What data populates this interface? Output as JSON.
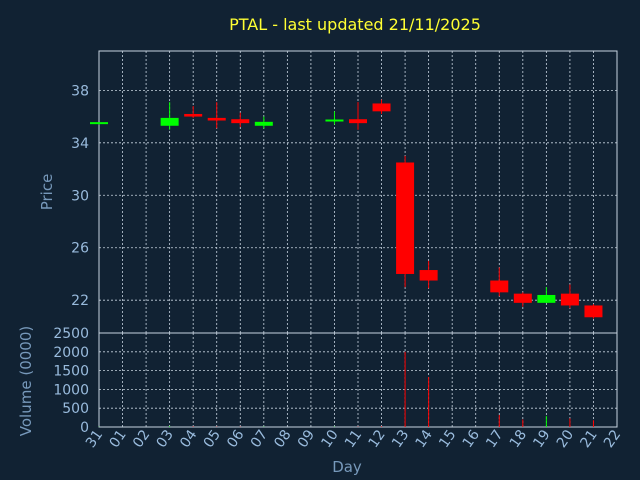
{
  "chart_data": {
    "type": "candlestick",
    "title": "PTAL - last updated 21/11/2025",
    "xlabel": "Day",
    "price_panel": {
      "ylabel": "Price",
      "ylim": [
        19.5,
        41
      ],
      "yticks": [
        "38",
        "34",
        "30",
        "26",
        "22"
      ],
      "ytick_values": [
        38,
        34,
        30,
        26,
        22
      ]
    },
    "volume_panel": {
      "ylabel": "Volume (0000)",
      "ylim": [
        0,
        2500
      ],
      "yticks": [
        "2500",
        "2000",
        "1500",
        "1000",
        "500",
        "0"
      ],
      "ytick_values": [
        2500,
        2000,
        1500,
        1000,
        500,
        0
      ]
    },
    "x_ticks": [
      "31",
      "01",
      "02",
      "03",
      "04",
      "05",
      "06",
      "07",
      "08",
      "09",
      "10",
      "11",
      "12",
      "13",
      "14",
      "15",
      "16",
      "17",
      "18",
      "19",
      "20",
      "21",
      "22"
    ],
    "grid": true,
    "colors": {
      "up": "#00ff00",
      "down": "#ff0000",
      "background": "#112233",
      "title": "#ffff33",
      "axis_text": "#99bbdd"
    },
    "candles": [
      {
        "day": "31",
        "open": 35.5,
        "high": 35.5,
        "low": 35.4,
        "close": 35.5,
        "volume": 5
      },
      {
        "day": "03",
        "open": 35.3,
        "high": 37.1,
        "low": 35.0,
        "close": 35.9,
        "volume": 20
      },
      {
        "day": "04",
        "open": 36.2,
        "high": 36.8,
        "low": 35.9,
        "close": 36.0,
        "volume": 15
      },
      {
        "day": "05",
        "open": 35.9,
        "high": 37.1,
        "low": 35.1,
        "close": 35.7,
        "volume": 10
      },
      {
        "day": "06",
        "open": 35.8,
        "high": 36.3,
        "low": 35.2,
        "close": 35.5,
        "volume": 10
      },
      {
        "day": "07",
        "open": 35.3,
        "high": 36.0,
        "low": 35.1,
        "close": 35.6,
        "volume": 10
      },
      {
        "day": "10",
        "open": 35.6,
        "high": 36.4,
        "low": 35.4,
        "close": 35.7,
        "volume": 10
      },
      {
        "day": "11",
        "open": 35.8,
        "high": 37.1,
        "low": 35.0,
        "close": 35.5,
        "volume": 10
      },
      {
        "day": "12",
        "open": 37.0,
        "high": 37.3,
        "low": 36.2,
        "close": 36.4,
        "volume": 20
      },
      {
        "day": "13",
        "open": 32.5,
        "high": 33.0,
        "low": 23.0,
        "close": 24.0,
        "volume": 2000
      },
      {
        "day": "14",
        "open": 24.3,
        "high": 25.0,
        "low": 22.9,
        "close": 23.5,
        "volume": 1330
      },
      {
        "day": "17",
        "open": 23.5,
        "high": 24.5,
        "low": 22.3,
        "close": 22.6,
        "volume": 320
      },
      {
        "day": "18",
        "open": 22.5,
        "high": 22.6,
        "low": 21.5,
        "close": 21.8,
        "volume": 200
      },
      {
        "day": "19",
        "open": 21.8,
        "high": 23.0,
        "low": 21.8,
        "close": 22.4,
        "volume": 290
      },
      {
        "day": "20",
        "open": 22.5,
        "high": 23.2,
        "low": 21.4,
        "close": 21.6,
        "volume": 230
      },
      {
        "day": "21",
        "open": 21.6,
        "high": 21.7,
        "low": 20.6,
        "close": 20.7,
        "volume": 180
      }
    ]
  }
}
